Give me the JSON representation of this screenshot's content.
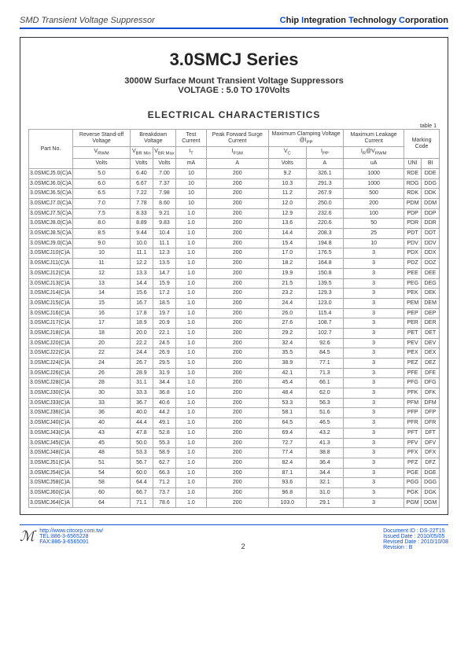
{
  "header": {
    "left": "SMD Transient Voltage Suppressor",
    "right_parts": [
      "C",
      "hip ",
      "I",
      "ntegration ",
      "T",
      "echnology ",
      "C",
      "orporation"
    ]
  },
  "title": "3.0SMCJ Series",
  "subtitle1": "3000W Surface Mount Transient Voltage Suppressors",
  "subtitle2": "VOLTAGE : 5.0 TO 170Volts",
  "section": "ELECTRICAL CHARACTERISTICS",
  "table_label": "table 1",
  "headers": {
    "part": "Part No.",
    "vrwm": "Reverse Stand-off Voltage",
    "bv": "Breakdown Voltage",
    "it": "Test Current",
    "ifsm": "Peak Forward Surge Current",
    "clamp": "Maximum Clamping Voltage @I",
    "clamp_sub": "PP",
    "leak": "Maximum Leakage Current",
    "mark": "Marking Code",
    "vrwm2": "V",
    "vrwm2s": "RWM",
    "vbrmin": "V",
    "vbrmins": "BR Min",
    "vbrmax": "V",
    "vbrmaxs": "BR Max",
    "it2": "I",
    "it2s": "T",
    "ifsm2": "I",
    "ifsm2s": "FSM",
    "vc": "V",
    "vcs": "C",
    "ipp": "I",
    "ipps": "PP",
    "ir": "I",
    "irs": "R",
    "irv": "@V",
    "irvs": "RWM",
    "volts": "Volts",
    "ma": "mA",
    "a": "A",
    "ua": "uA",
    "uni": "UNI",
    "bi": "BI"
  },
  "rows": [
    [
      "3.0SMCJ5.0(C)A",
      "5.0",
      "6.40",
      "7.00",
      "10",
      "200",
      "9.2",
      "326.1",
      "1000",
      "RDE",
      "DDE"
    ],
    [
      "3.0SMCJ6.0(C)A",
      "6.0",
      "6.67",
      "7.37",
      "10",
      "200",
      "10.3",
      "291.3",
      "1000",
      "RDG",
      "DDG"
    ],
    [
      "3.0SMCJ6.5(C)A",
      "6.5",
      "7.22",
      "7.98",
      "10",
      "200",
      "11.2",
      "267.9",
      "500",
      "RDK",
      "DDK"
    ],
    [
      "3.0SMCJ7.0(C)A",
      "7.0",
      "7.78",
      "8.60",
      "10",
      "200",
      "12.0",
      "250.0",
      "200",
      "PDM",
      "DDM"
    ],
    [
      "3.0SMCJ7.5(C)A",
      "7.5",
      "8.33",
      "9.21",
      "1.0",
      "200",
      "12.9",
      "232.6",
      "100",
      "PDP",
      "DDP"
    ],
    [
      "3.0SMCJ8.0(C)A",
      "8.0",
      "8.89",
      "9.83",
      "1.0",
      "200",
      "13.6",
      "220.6",
      "50",
      "PDR",
      "DDR"
    ],
    [
      "3.0SMCJ8.5(C)A",
      "8.5",
      "9.44",
      "10.4",
      "1.0",
      "200",
      "14.4",
      "208.3",
      "25",
      "PDT",
      "DDT"
    ],
    [
      "3.0SMCJ9.0(C)A",
      "9.0",
      "10.0",
      "11.1",
      "1.0",
      "200",
      "15.4",
      "194.8",
      "10",
      "PDV",
      "DDV"
    ],
    [
      "3.0SMCJ10(C)A",
      "10",
      "11.1",
      "12.3",
      "1.0",
      "200",
      "17.0",
      "176.5",
      "3",
      "PDX",
      "DDX"
    ],
    [
      "3.0SMCJ11(C)A",
      "11",
      "12.2",
      "13.5",
      "1.0",
      "200",
      "18.2",
      "164.8",
      "3",
      "PDZ",
      "DDZ"
    ],
    [
      "3.0SMCJ12(C)A",
      "12",
      "13.3",
      "14.7",
      "1.0",
      "200",
      "19.9",
      "150.8",
      "3",
      "PEE",
      "DEE"
    ],
    [
      "3.0SMCJ13(C)A",
      "13",
      "14.4",
      "15.9",
      "1.0",
      "200",
      "21.5",
      "139.5",
      "3",
      "PEG",
      "DEG"
    ],
    [
      "3.0SMCJ14(C)A",
      "14",
      "15.6",
      "17.2",
      "1.0",
      "200",
      "23.2",
      "129.3",
      "3",
      "PEK",
      "DEK"
    ],
    [
      "3.0SMCJ15(C)A",
      "15",
      "16.7",
      "18.5",
      "1.0",
      "200",
      "24.4",
      "123.0",
      "3",
      "PEM",
      "DEM"
    ],
    [
      "3.0SMCJ16(C)A",
      "16",
      "17.8",
      "19.7",
      "1.0",
      "200",
      "26.0",
      "115.4",
      "3",
      "PEP",
      "DEP"
    ],
    [
      "3.0SMCJ17(C)A",
      "17",
      "18.9",
      "20.9",
      "1.0",
      "200",
      "27.6",
      "108.7",
      "3",
      "PER",
      "DER"
    ],
    [
      "3.0SMCJ18(C)A",
      "18",
      "20.0",
      "22.1",
      "1.0",
      "200",
      "29.2",
      "102.7",
      "3",
      "PET",
      "DET"
    ],
    [
      "3.0SMCJ20(C)A",
      "20",
      "22.2",
      "24.5",
      "1.0",
      "200",
      "32.4",
      "92.6",
      "3",
      "PEV",
      "DEV"
    ],
    [
      "3.0SMCJ22(C)A",
      "22",
      "24.4",
      "26.9",
      "1.0",
      "200",
      "35.5",
      "84.5",
      "3",
      "PEX",
      "DEX"
    ],
    [
      "3.0SMCJ24(C)A",
      "24",
      "26.7",
      "29.5",
      "1.0",
      "200",
      "38.9",
      "77.1",
      "3",
      "PEZ",
      "DEZ"
    ],
    [
      "3.0SMCJ26(C)A",
      "26",
      "28.9",
      "31.9",
      "1.0",
      "200",
      "42.1",
      "71.3",
      "3",
      "PFE",
      "DFE"
    ],
    [
      "3.0SMCJ28(C)A",
      "28",
      "31.1",
      "34.4",
      "1.0",
      "200",
      "45.4",
      "66.1",
      "3",
      "PFG",
      "DFG"
    ],
    [
      "3.0SMCJ30(C)A",
      "30",
      "33.3",
      "36.8",
      "1.0",
      "200",
      "48.4",
      "62.0",
      "3",
      "PFK",
      "DFK"
    ],
    [
      "3.0SMCJ33(C)A",
      "33",
      "36.7",
      "40.6",
      "1.0",
      "200",
      "53.3",
      "56.3",
      "3",
      "PFM",
      "DFM"
    ],
    [
      "3.0SMCJ36(C)A",
      "36",
      "40.0",
      "44.2",
      "1.0",
      "200",
      "58.1",
      "51.6",
      "3",
      "PFP",
      "DFP"
    ],
    [
      "3.0SMCJ40(C)A",
      "40",
      "44.4",
      "49.1",
      "1.0",
      "200",
      "64.5",
      "46.5",
      "3",
      "PFR",
      "DFR"
    ],
    [
      "3.0SMCJ43(C)A",
      "43",
      "47.8",
      "52.8",
      "1.0",
      "200",
      "69.4",
      "43.2",
      "3",
      "PFT",
      "DFT"
    ],
    [
      "3.0SMCJ45(C)A",
      "45",
      "50.0",
      "55.3",
      "1.0",
      "200",
      "72.7",
      "41.3",
      "3",
      "PFV",
      "DFV"
    ],
    [
      "3.0SMCJ48(C)A",
      "48",
      "53.3",
      "58.9",
      "1.0",
      "200",
      "77.4",
      "38.8",
      "3",
      "PFX",
      "DFX"
    ],
    [
      "3.0SMCJ51(C)A",
      "51",
      "56.7",
      "62.7",
      "1.0",
      "200",
      "82.4",
      "36.4",
      "3",
      "PFZ",
      "DFZ"
    ],
    [
      "3.0SMCJ54(C)A",
      "54",
      "60.0",
      "66.3",
      "1.0",
      "200",
      "87.1",
      "34.4",
      "3",
      "PGE",
      "DGE"
    ],
    [
      "3.0SMCJ58(C)A",
      "58",
      "64.4",
      "71.2",
      "1.0",
      "200",
      "93.6",
      "32.1",
      "3",
      "PGG",
      "DGG"
    ],
    [
      "3.0SMCJ60(C)A",
      "60",
      "66.7",
      "73.7",
      "1.0",
      "200",
      "96.8",
      "31.0",
      "3",
      "PGK",
      "DGK"
    ],
    [
      "3.0SMCJ64(C)A",
      "64",
      "71.1",
      "78.6",
      "1.0",
      "200",
      "103.0",
      "29.1",
      "3",
      "PGM",
      "DGM"
    ]
  ],
  "footer": {
    "url": "http://www.citcorp.com.tw/",
    "tel": "TEL:886-3-6565228",
    "fax": "FAX:886-3-6565091",
    "doc": "Document ID : DS-22T15",
    "issued": "Issued Date : 2010/05/05",
    "revised": "Revised Date : 2010/10/08",
    "rev": "Revision : B",
    "page": "2"
  }
}
